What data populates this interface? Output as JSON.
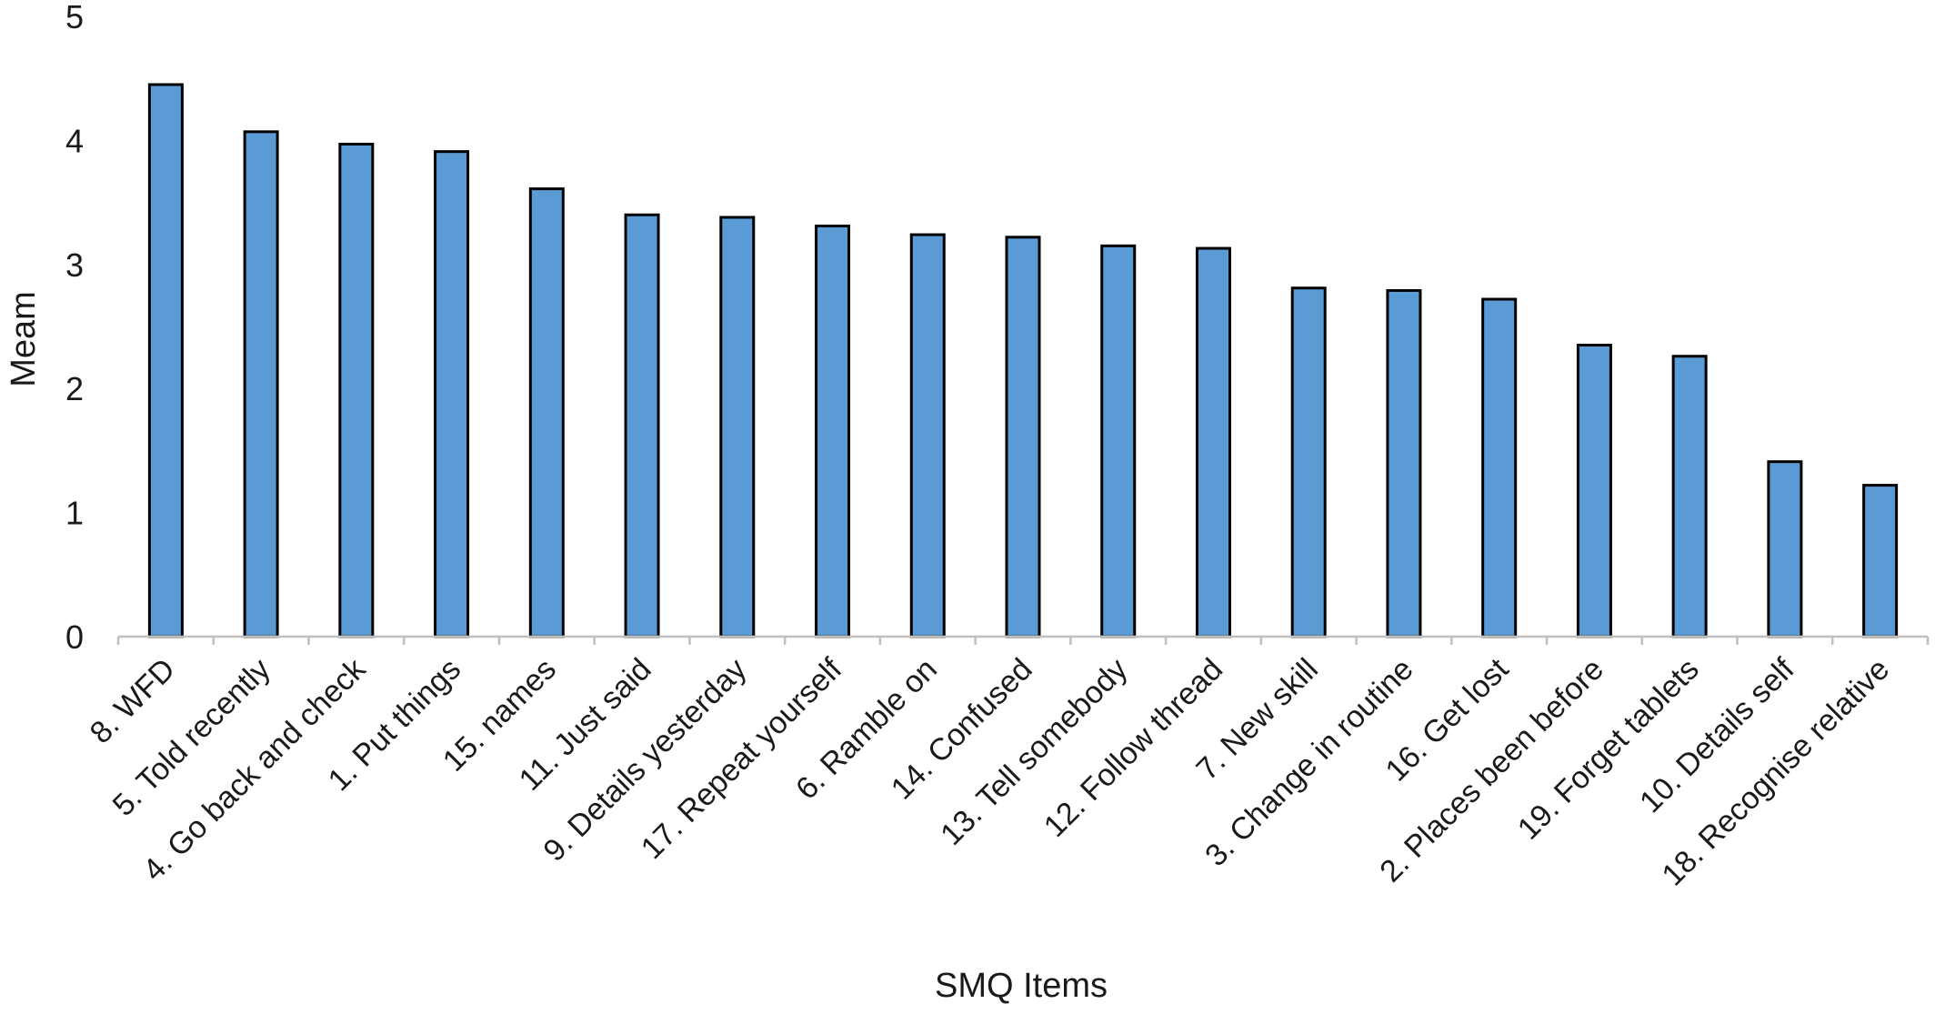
{
  "chart_data": {
    "type": "bar",
    "title": "",
    "xlabel": "SMQ Items",
    "ylabel": "Meam",
    "ylim": [
      0,
      5
    ],
    "yticks": [
      0,
      1,
      2,
      3,
      4,
      5
    ],
    "grid": false,
    "legend": "none",
    "bar_color": "#5B9BD5",
    "bar_edge_color": "#000000",
    "axis_color": "#BFBFBF",
    "categories": [
      "8. WFD",
      "5. Told recently",
      "4. Go back and check",
      "1. Put things",
      "15. names",
      "11. Just said",
      "9. Details yesterday",
      "17. Repeat yourself",
      "6. Ramble on",
      "14. Confused",
      "13. Tell somebody",
      "12. Follow thread",
      "7. New skill",
      "3. Change in routine",
      "16. Get lost",
      "2. Places been before",
      "19. Forget tablets",
      "10. Details self",
      "18. Recognise relative"
    ],
    "values": [
      4.45,
      4.07,
      3.97,
      3.91,
      3.61,
      3.4,
      3.38,
      3.31,
      3.24,
      3.22,
      3.15,
      3.13,
      2.81,
      2.79,
      2.72,
      2.35,
      2.26,
      1.41,
      1.22
    ]
  }
}
